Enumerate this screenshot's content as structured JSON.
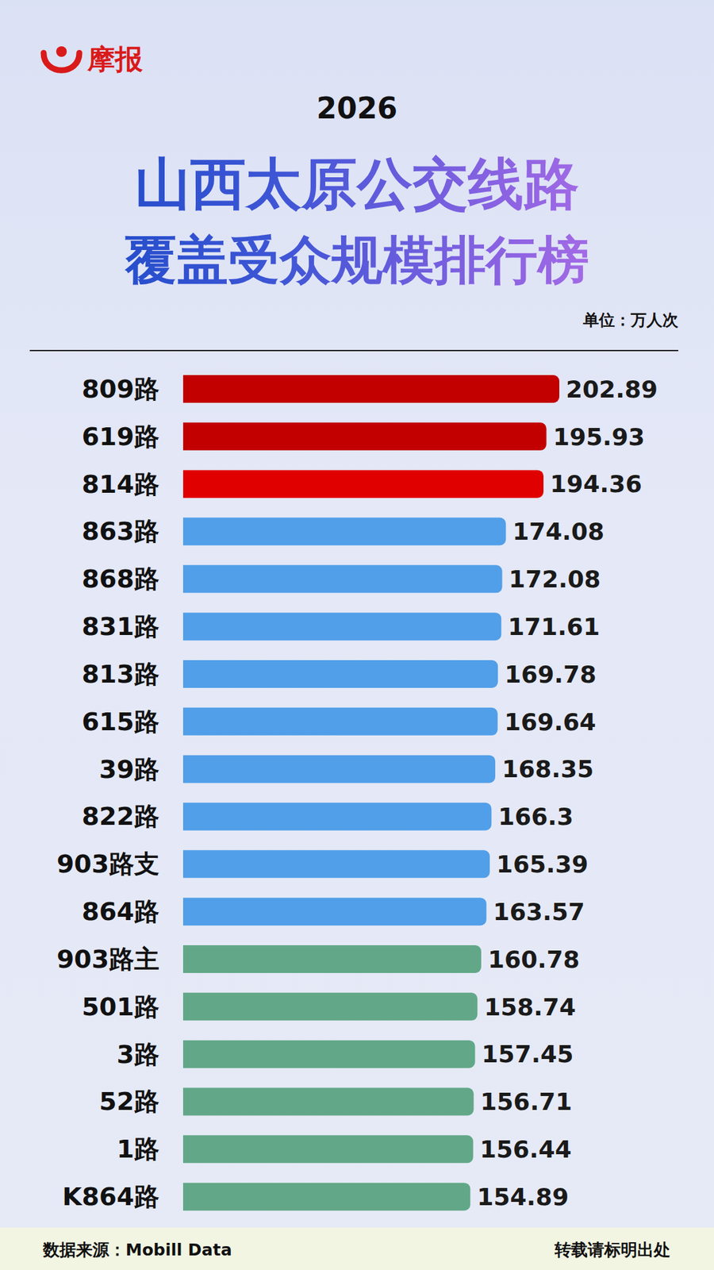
{
  "chart_data": {
    "type": "bar",
    "orientation": "horizontal",
    "brand": "摩报",
    "year": "2026",
    "title": [
      "山西太原公交线路",
      "覆盖受众规模排行榜"
    ],
    "unit": "单位：万人次",
    "source": "数据来源：Mobill Data",
    "note": "转载请标明出处",
    "categories": [
      "809路",
      "619路",
      "814路",
      "863路",
      "868路",
      "831路",
      "813路",
      "615路",
      "39路",
      "822路",
      "903路支",
      "864路",
      "903路主",
      "501路",
      "3路",
      "52路",
      "1路",
      "K864路"
    ],
    "values": [
      202.89,
      195.93,
      194.36,
      174.08,
      172.08,
      171.61,
      169.78,
      169.64,
      168.35,
      166.3,
      165.39,
      163.57,
      160.78,
      158.74,
      157.45,
      156.71,
      156.44,
      154.89
    ],
    "colors": [
      "#c20000",
      "#c20000",
      "#e00000",
      "#519fe9",
      "#519fe9",
      "#519fe9",
      "#519fe9",
      "#519fe9",
      "#519fe9",
      "#519fe9",
      "#519fe9",
      "#519fe9",
      "#62a888",
      "#62a888",
      "#62a888",
      "#62a888",
      "#62a888",
      "#62a888"
    ],
    "data_labels": true,
    "tick_labels": "y",
    "grid": false
  }
}
